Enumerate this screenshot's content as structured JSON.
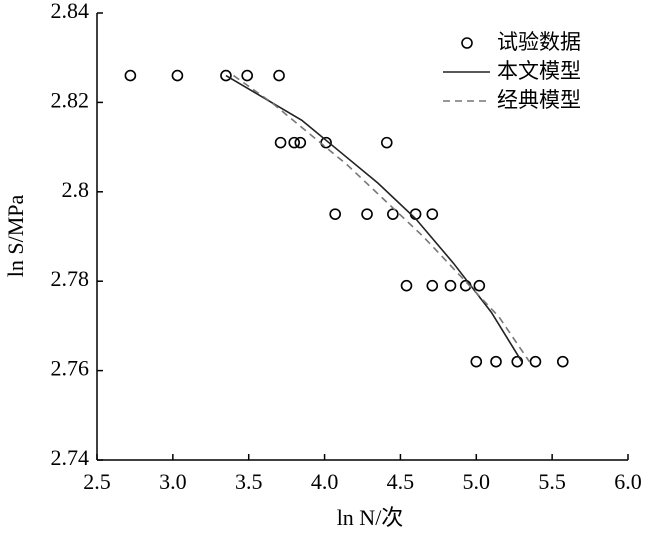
{
  "chart_data": {
    "type": "scatter",
    "xlabel": "ln N/次",
    "ylabel": "ln S/MPa",
    "xlim": [
      2.5,
      6.0
    ],
    "xticks": [
      2.5,
      {
        "value": 3,
        "label": "3.0"
      },
      3.5,
      {
        "value": 4,
        "label": "4.0"
      },
      4.5,
      {
        "value": 5,
        "label": "5.0"
      },
      5.5,
      {
        "value": 6,
        "label": "6.0"
      }
    ],
    "ylim": [
      2.74,
      2.84
    ],
    "yticks": [
      2.74,
      2.76,
      2.78,
      2.8,
      2.82,
      2.84
    ],
    "legend": "upper right",
    "series": [
      {
        "name": "试验数据",
        "type": "scatter",
        "color": "#000000",
        "x": [
          2.72,
          3.03,
          3.35,
          3.49,
          3.7,
          3.71,
          3.8,
          3.84,
          4.01,
          4.41,
          4.07,
          4.28,
          4.45,
          4.6,
          4.71,
          4.54,
          4.71,
          4.83,
          4.93,
          5.02,
          5.0,
          5.13,
          5.27,
          5.39,
          5.57
        ],
        "values": [
          2.826,
          2.826,
          2.826,
          2.826,
          2.826,
          2.811,
          2.811,
          2.811,
          2.811,
          2.811,
          2.795,
          2.795,
          2.795,
          2.795,
          2.795,
          2.779,
          2.779,
          2.779,
          2.779,
          2.779,
          2.762,
          2.762,
          2.762,
          2.762,
          2.762
        ]
      },
      {
        "name": "本文模型",
        "type": "line",
        "color": "#222222",
        "dashed": false,
        "x": [
          3.35,
          3.6,
          3.85,
          4.1,
          4.35,
          4.6,
          4.85,
          5.1,
          5.3
        ],
        "values": [
          2.826,
          2.821,
          2.816,
          2.809,
          2.802,
          2.794,
          2.784,
          2.773,
          2.762
        ]
      },
      {
        "name": "经典模型",
        "type": "line",
        "color": "#777777",
        "dashed": true,
        "x": [
          3.4,
          3.65,
          3.9,
          4.15,
          4.4,
          4.65,
          4.9,
          5.15,
          5.35
        ],
        "values": [
          2.826,
          2.82,
          2.813,
          2.806,
          2.798,
          2.79,
          2.781,
          2.772,
          2.762
        ]
      }
    ]
  }
}
